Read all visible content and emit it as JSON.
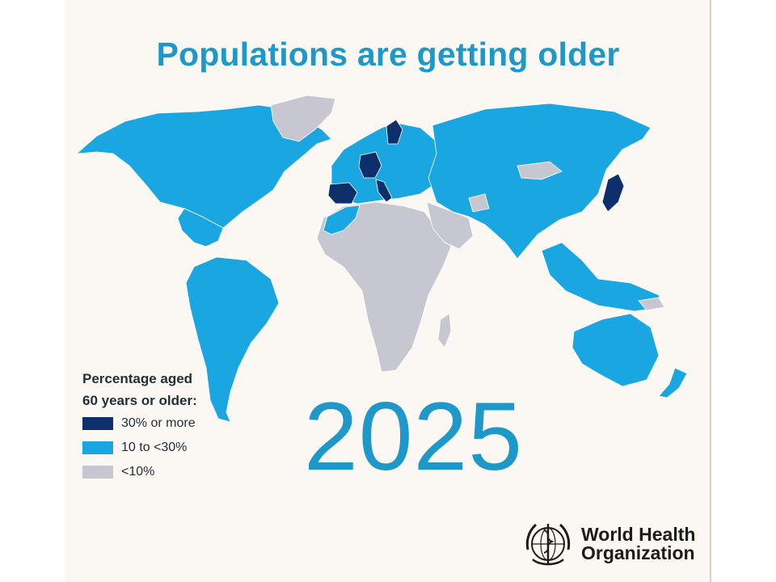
{
  "title": "Populations are getting older",
  "year": "2025",
  "legend": {
    "title": "Percentage aged\n60 years or older:",
    "items": [
      {
        "label": "30% or more",
        "color": "#0d2f6b"
      },
      {
        "label": "10 to <30%",
        "color": "#1aa6e0"
      },
      {
        "label": "<10%",
        "color": "#c7c7d1"
      }
    ]
  },
  "colors": {
    "dark": "#0d2f6b",
    "mid": "#1aa6e0",
    "light": "#c7c7d1",
    "text_blue": "#1d98c9"
  },
  "logo": {
    "name": "World Health\nOrganization",
    "icon": "who-emblem-icon"
  }
}
